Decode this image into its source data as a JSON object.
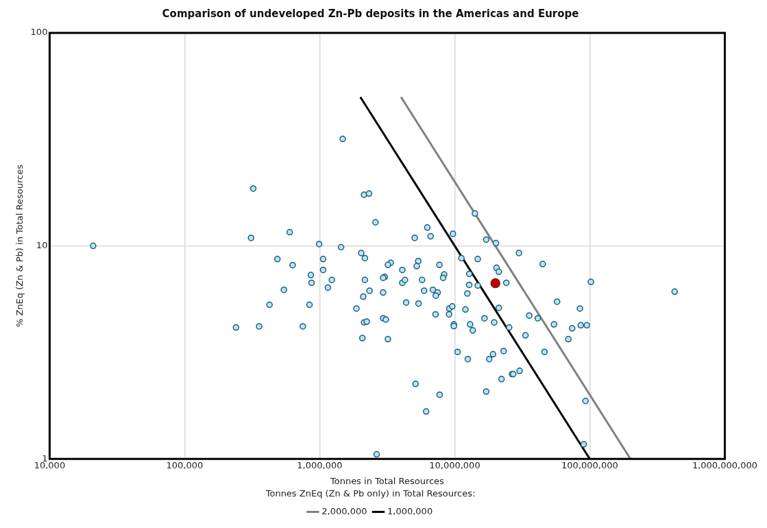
{
  "chart_data": {
    "type": "scatter",
    "title": "Comparison of undeveloped Zn-Pb deposits in the Americas and Europe",
    "xlabel": "Tonnes in Total Resources",
    "ylabel": "% ZnEq (Zn & Pb) in Total Resources",
    "legend_title": "Tonnes ZnEq (Zn & Pb only) in Total Resources:",
    "log": "xy",
    "grid": true,
    "legend": "bottom",
    "line_style": "solid",
    "xlim": [
      10000,
      1000000000
    ],
    "xticks": [
      {
        "value": 10000,
        "label": "10,000"
      },
      {
        "value": 100000,
        "label": "100,000"
      },
      {
        "value": 1000000,
        "label": "1,000,000"
      },
      {
        "value": 10000000,
        "label": "10,000,000"
      },
      {
        "value": 100000000,
        "label": "100,000,000"
      },
      {
        "value": 1000000000,
        "label": "1,000,000,000"
      }
    ],
    "ylim": [
      1,
      100
    ],
    "yticks": [
      1,
      10,
      100
    ],
    "series": [
      {
        "type": "scatter",
        "marker": "circle",
        "color": "#bde3f2",
        "x": [
          21000,
          322000,
          310000,
          600000,
          990000,
          486000,
          630000,
          1060000,
          1060000,
          860000,
          870000,
          1150000,
          1230000,
          543000,
          425000,
          840000,
          240000,
          356000,
          750000,
          2130000,
          2320000,
          2590000,
          6260000,
          5050000,
          6630000,
          9700000,
          14100000,
          17100000,
          20200000,
          1440000,
          2030000,
          2160000,
          3360000,
          3200000,
          4090000,
          5370000,
          5230000,
          7700000,
          8350000,
          8200000,
          11200000,
          14800000,
          2160000,
          3030000,
          2950000,
          4090000,
          4280000,
          5730000,
          12800000,
          20400000,
          21200000,
          24100000,
          12800000,
          14800000,
          2340000,
          2950000,
          2100000,
          5930000,
          6890000,
          7470000,
          7240000,
          12400000,
          1870000,
          4370000,
          5390000,
          9120000,
          9590000,
          12000000,
          21200000,
          7210000,
          9080000,
          2130000,
          2230000,
          2950000,
          3090000,
          9850000,
          9850000,
          13000000,
          13600000,
          16600000,
          19600000,
          25300000,
          2070000,
          3200000,
          10500000,
          12500000,
          18000000,
          19200000,
          23000000,
          26600000,
          27100000,
          30200000,
          22200000,
          17100000,
          5130000,
          7730000,
          6140000,
          2640000,
          29900000,
          44800000,
          102000000,
          425000000,
          57300000,
          84500000,
          35600000,
          41200000,
          54300000,
          74100000,
          85800000,
          95100000,
          69400000,
          33400000,
          46200000,
          93000000,
          90200000,
          1480000
        ],
        "values": [
          10,
          18.6,
          10.9,
          11.6,
          10.2,
          8.67,
          8.12,
          8.67,
          7.71,
          7.3,
          6.71,
          6.37,
          6.92,
          6.22,
          5.29,
          5.29,
          4.14,
          4.19,
          4.19,
          17.4,
          17.6,
          12.9,
          12.2,
          10.9,
          11.1,
          11.4,
          14.2,
          10.7,
          10.3,
          9.86,
          9.26,
          8.76,
          8.33,
          8.14,
          7.71,
          8.49,
          8.04,
          8.14,
          7.34,
          7.08,
          8.76,
          8.67,
          6.92,
          7.15,
          7.08,
          6.71,
          6.92,
          6.92,
          7.39,
          7.89,
          7.56,
          6.71,
          6.56,
          6.51,
          6.16,
          6.04,
          5.78,
          6.16,
          6.22,
          6.04,
          5.84,
          5.98,
          5.08,
          5.42,
          5.36,
          5.08,
          5.2,
          5.03,
          5.12,
          4.77,
          4.77,
          4.37,
          4.41,
          4.57,
          4.51,
          4.28,
          4.2,
          4.28,
          4.01,
          4.57,
          4.37,
          4.14,
          3.69,
          3.65,
          3.18,
          2.94,
          2.94,
          3.1,
          3.21,
          2.5,
          2.5,
          2.59,
          2.37,
          2.07,
          2.25,
          2.0,
          1.67,
          1.05,
          9.26,
          8.22,
          6.78,
          6.1,
          5.47,
          5.08,
          4.71,
          4.57,
          4.28,
          4.1,
          4.24,
          4.24,
          3.65,
          3.8,
          3.18,
          1.87,
          1.17,
          31.8
        ]
      },
      {
        "type": "scatter",
        "marker": "circle",
        "color": "#c00000",
        "x": [
          20000000
        ],
        "values": [
          6.68
        ]
      },
      {
        "type": "line",
        "marker": "none",
        "name": "2,000,000",
        "color": "#808080",
        "x": [
          4000000,
          200000000
        ],
        "values": [
          50,
          1
        ]
      },
      {
        "type": "line",
        "marker": "none",
        "name": "1,000,000",
        "color": "#000000",
        "x": [
          2000000,
          100000000
        ],
        "values": [
          50,
          1
        ]
      }
    ]
  }
}
